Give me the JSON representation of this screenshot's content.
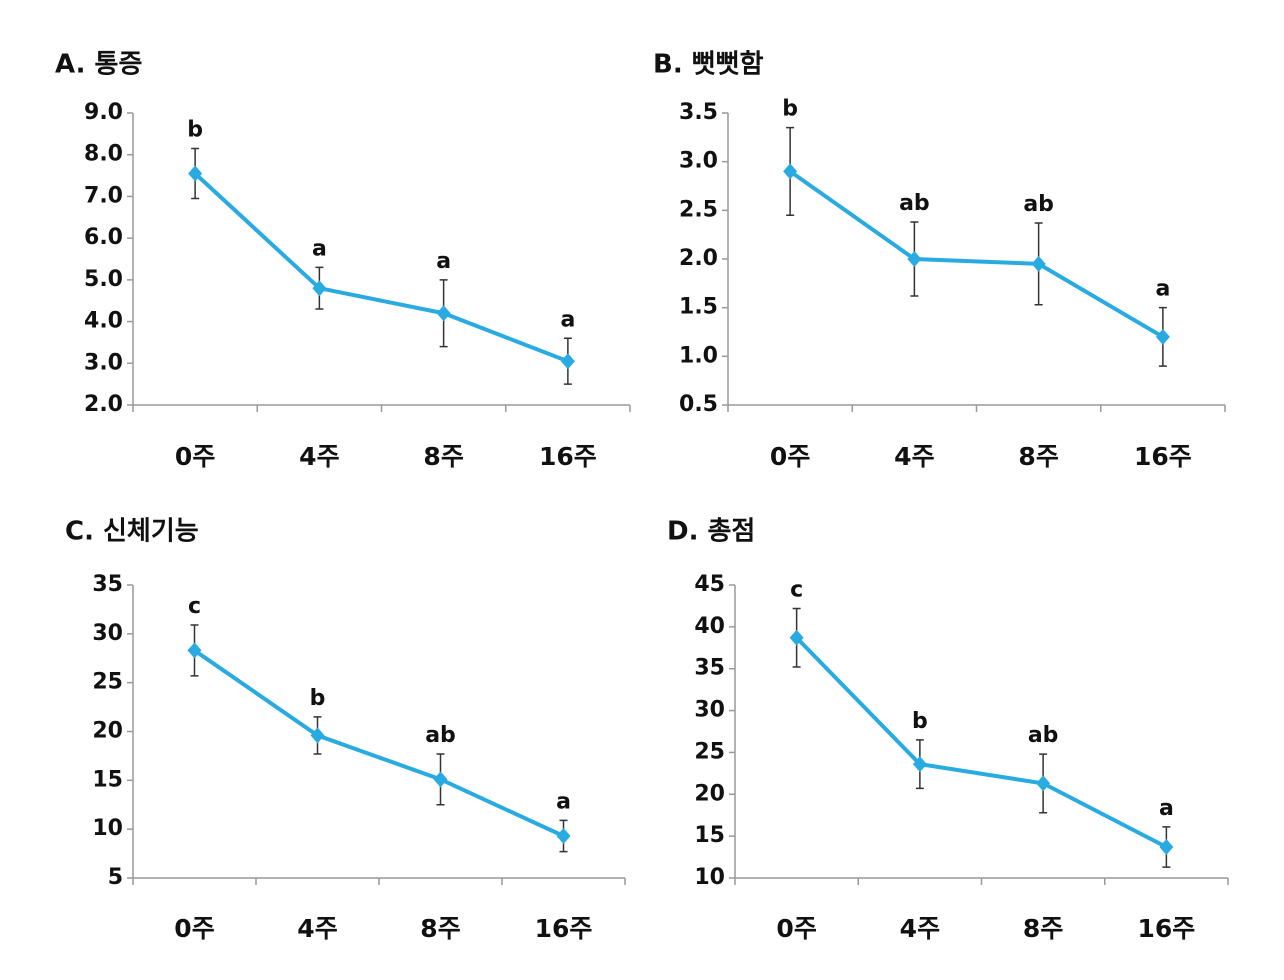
{
  "chart_data": [
    {
      "type": "line",
      "title": "A. 통증",
      "categories": [
        "0주",
        "4주",
        "8주",
        "16주"
      ],
      "values": [
        7.55,
        4.8,
        4.2,
        3.05
      ],
      "errors": [
        0.6,
        0.5,
        0.8,
        0.55
      ],
      "annotations": [
        "b",
        "a",
        "a",
        "a"
      ],
      "color": "#29abe2",
      "ylim": [
        2,
        9
      ],
      "yticks": [
        {
          "value": 2,
          "label": "2.0"
        },
        {
          "value": 3,
          "label": "3.0"
        },
        {
          "value": 4,
          "label": "4.0"
        },
        {
          "value": 5,
          "label": "5.0"
        },
        {
          "value": 6,
          "label": "6.0"
        },
        {
          "value": 7,
          "label": "7.0"
        },
        {
          "value": 8,
          "label": "8.0"
        },
        {
          "value": 9,
          "label": "9.0"
        }
      ]
    },
    {
      "type": "line",
      "title": "B. 뻣뻣함",
      "categories": [
        "0주",
        "4주",
        "8주",
        "16주"
      ],
      "values": [
        2.9,
        2.0,
        1.95,
        1.2
      ],
      "errors": [
        0.45,
        0.38,
        0.42,
        0.3
      ],
      "annotations": [
        "b",
        "ab",
        "ab",
        "a"
      ],
      "color": "#29abe2",
      "ylim": [
        0.5,
        3.5
      ],
      "yticks": [
        0.5,
        {
          "value": 1,
          "label": "1.0"
        },
        1.5,
        {
          "value": 2,
          "label": "2.0"
        },
        2.5,
        {
          "value": 3,
          "label": "3.0"
        },
        3.5
      ]
    },
    {
      "type": "line",
      "title": "C. 신체기능",
      "categories": [
        "0주",
        "4주",
        "8주",
        "16주"
      ],
      "values": [
        28.3,
        19.6,
        15.1,
        9.3
      ],
      "errors": [
        2.6,
        1.9,
        2.6,
        1.6
      ],
      "annotations": [
        "c",
        "b",
        "ab",
        "a"
      ],
      "color": "#29abe2",
      "ylim": [
        5,
        35
      ],
      "yticks": [
        5,
        10,
        15,
        20,
        25,
        30,
        35
      ]
    },
    {
      "type": "line",
      "title": "D. 총점",
      "categories": [
        "0주",
        "4주",
        "8주",
        "16주"
      ],
      "values": [
        38.7,
        23.6,
        21.3,
        13.7
      ],
      "errors": [
        3.5,
        2.9,
        3.5,
        2.4
      ],
      "annotations": [
        "c",
        "b",
        "ab",
        "a"
      ],
      "color": "#29abe2",
      "ylim": [
        10,
        45
      ],
      "yticks": [
        10,
        15,
        20,
        25,
        30,
        35,
        40,
        45
      ]
    }
  ]
}
